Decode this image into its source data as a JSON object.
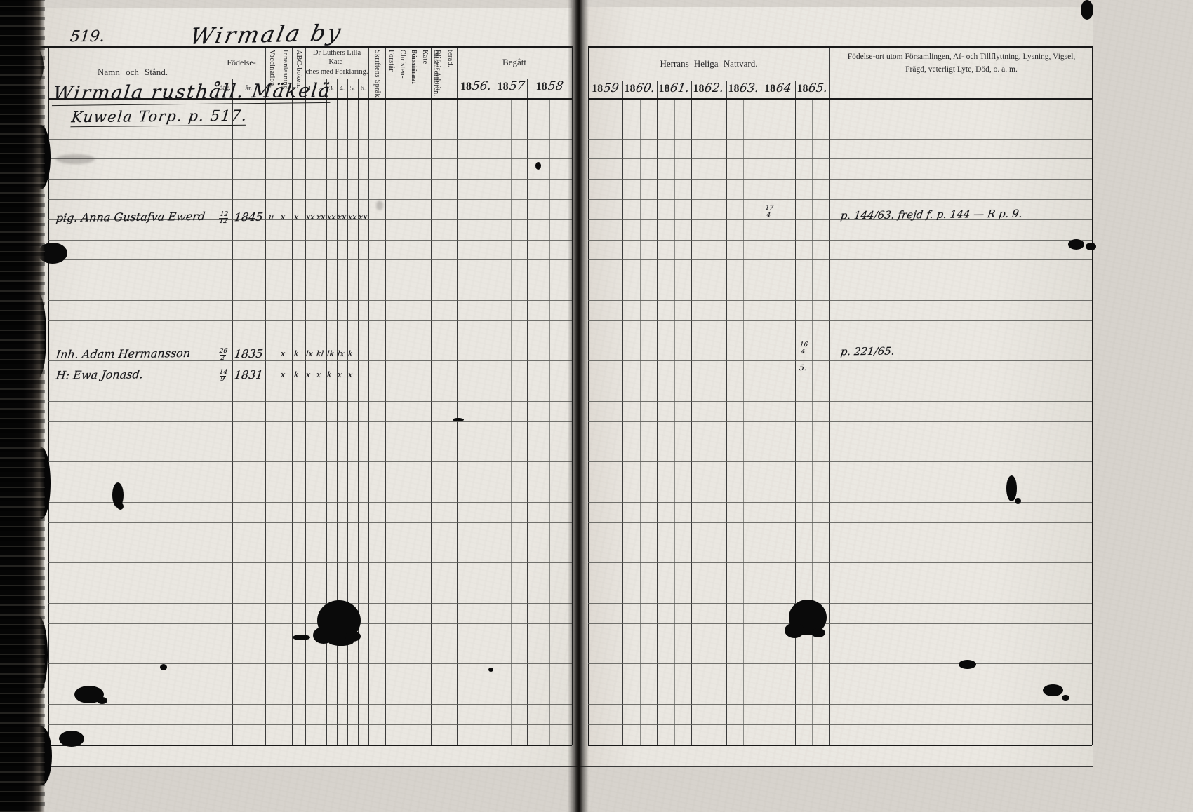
{
  "page": {
    "number": "519.",
    "title": "Wirmala by"
  },
  "left_table": {
    "name_header": "Namn och Stånd.",
    "birth_group": "Födelse-",
    "birth_day": "dag.",
    "birth_year": "år.",
    "vaccination": "Vaccination.",
    "reading": "Innanläsning.",
    "abc_book": "ABC-boken.",
    "catechism_group": "Dr Luthers Lilla Kate-\nches med Förklaring.",
    "catechism_cols": [
      "1.",
      "2.",
      "3.",
      "4.",
      "5.",
      "6."
    ],
    "scripture": "Skriftens Språk.",
    "understands": "Förstår Christen-\ndomsläran.",
    "neglected": "Försummat Kate-\nchismförhören.",
    "admitted": "Blifvit Admit-\nterad.",
    "communion_group": "Begått",
    "years": [
      "1856.",
      "1857",
      "1858"
    ]
  },
  "right_table": {
    "communion_header": "Herrans Heliga Nattvard.",
    "years": [
      "1859",
      "1860.",
      "1861.",
      "1862.",
      "1863.",
      "1864",
      "1865."
    ],
    "notes_header": "Födelse-ort utom Församlingen, Af- och Tillflyttning, Lysning, Vigsel,\nFrägd, veterligt Lyte, Död, o. a. m."
  },
  "entries": {
    "village_heading": "Wirmala rusthåll. Mäkelä",
    "sub_heading": "Kuwela Torp. p. 517.",
    "persons": [
      {
        "name": "pig. Anna Gustafva Ewerd",
        "birth_day": "12/12",
        "birth_year": "1845",
        "marks": [
          "u",
          "x",
          "x",
          "xx",
          "xx",
          "xx",
          "xx",
          "xx",
          "xx"
        ],
        "nattvard_year": "1864",
        "nattvard_value": "17/4",
        "note": "p. 144/63. frejd f. p. 144 — R p. 9."
      },
      {
        "name": "Inh. Adam Hermansson",
        "birth_day": "26/2",
        "birth_year": "1835",
        "marks": [
          "",
          "x",
          "k",
          "lx",
          "kl",
          "lk",
          "lx",
          "k",
          ""
        ],
        "nattvard_year": "1865",
        "nattvard_value": "16/4",
        "note": "p. 221/65."
      },
      {
        "name": "H: Ewa Jonasd.",
        "birth_day": "14/9",
        "birth_year": "1831",
        "marks": [
          "",
          "x",
          "k",
          "x",
          "x",
          "k",
          "x",
          "x",
          ""
        ],
        "nattvard_year": "1865",
        "nattvard_value": "5.",
        "note": ""
      }
    ]
  }
}
